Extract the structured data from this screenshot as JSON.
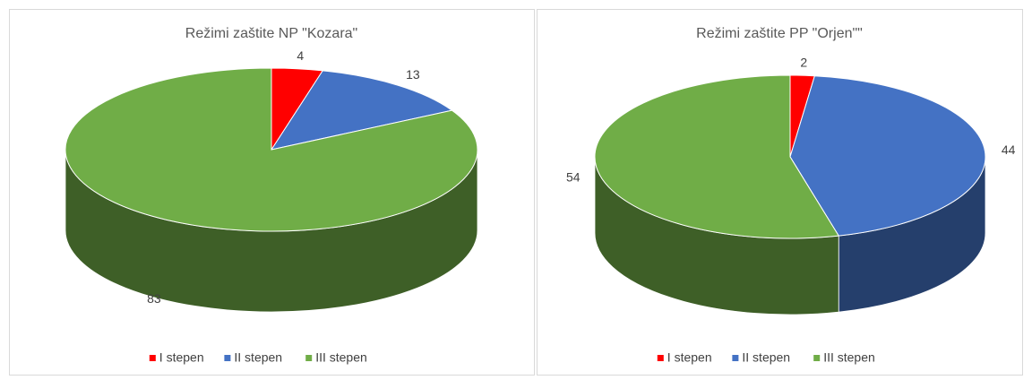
{
  "chart_data": [
    {
      "type": "pie3d",
      "title": "Režimi zaštite NP \"Kozara\"",
      "categories": [
        "I stepen",
        "II stepen",
        "III stepen"
      ],
      "values": [
        4,
        13,
        83
      ],
      "colors": [
        "#ff0000",
        "#4472c4",
        "#70ad47"
      ],
      "legend": "bottom"
    },
    {
      "type": "pie3d",
      "title": "Režimi zaštite PP \"Orjen\"\"",
      "categories": [
        "I stepen",
        "II stepen",
        "III stepen"
      ],
      "values": [
        2,
        44,
        54
      ],
      "colors": [
        "#ff0000",
        "#4472c4",
        "#70ad47"
      ],
      "legend": "bottom"
    }
  ]
}
